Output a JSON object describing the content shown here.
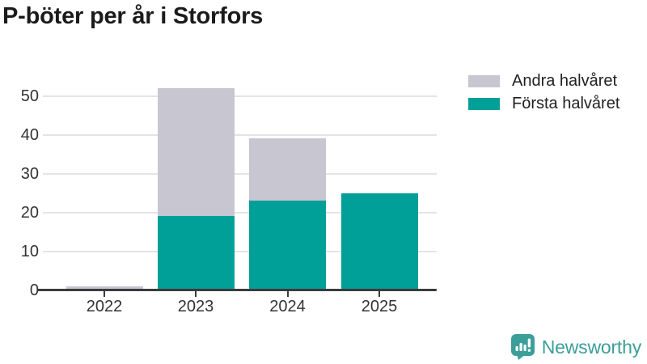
{
  "title": "P-böter per år i Storfors",
  "chart_data": {
    "type": "bar",
    "stacked": true,
    "title": "P-böter per år i Storfors",
    "categories": [
      "2022",
      "2023",
      "2024",
      "2025"
    ],
    "series": [
      {
        "name": "Första halvåret",
        "color": "#00A099",
        "values": [
          0,
          19,
          23,
          25
        ]
      },
      {
        "name": "Andra halvåret",
        "color": "#C7C6D1",
        "values": [
          1,
          33,
          16,
          0
        ]
      }
    ],
    "totals": [
      1,
      52,
      39,
      25
    ],
    "xlabel": "",
    "ylabel": "",
    "yticks": [
      0,
      10,
      20,
      30,
      40,
      50
    ],
    "ylim": [
      0,
      55
    ],
    "grid": true,
    "legend_position": "top-right"
  },
  "legend": {
    "items": [
      {
        "label": "Andra halvåret",
        "color": "#C7C6D1"
      },
      {
        "label": "Första halvåret",
        "color": "#00A099"
      }
    ]
  },
  "brand": {
    "name": "Newsworthy",
    "color": "#3C9E99"
  },
  "colors": {
    "axis": "#3B3B3B",
    "grid": "#E4E3E7",
    "tick_text": "#333333",
    "title_text": "#1B1B1B"
  }
}
